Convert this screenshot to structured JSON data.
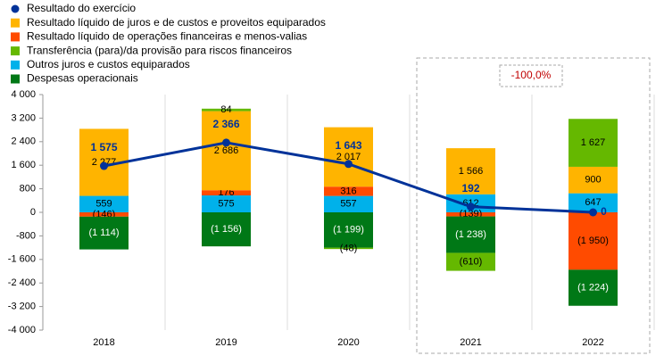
{
  "chart_data": {
    "type": "bar",
    "categories": [
      "2018",
      "2019",
      "2020",
      "2021",
      "2022"
    ],
    "series": [
      {
        "name": "Resultado do exercício",
        "type": "line",
        "color": "#003299",
        "values": [
          1575,
          2366,
          1643,
          192,
          0
        ],
        "value_labels": [
          "1 575",
          "2 366",
          "1 643",
          "192",
          "0"
        ]
      },
      {
        "name": "Resultado líquido de juros e de custos e proveitos equiparados",
        "color": "#ffb400",
        "values": [
          2277,
          2686,
          2017,
          1566,
          900
        ],
        "value_labels": [
          "2 277",
          "2 686",
          "2 017",
          "1 566",
          "900"
        ]
      },
      {
        "name": "Resultado líquido de operações financeiras e menos-valias",
        "color": "#ff4b00",
        "values": [
          -146,
          176,
          316,
          -139,
          -1950
        ],
        "value_labels": [
          "(146)",
          "176",
          "316",
          "(139)",
          "(1 950)"
        ]
      },
      {
        "name": "Transferência (para)/da provisão para riscos financeiros",
        "color": "#65b800",
        "values": [
          null,
          84,
          -48,
          -610,
          1627
        ],
        "value_labels": [
          null,
          "84",
          "(48)",
          "(610)",
          "1 627"
        ]
      },
      {
        "name": "Outros juros e custos equiparados",
        "color": "#00b1ea",
        "values": [
          559,
          575,
          557,
          612,
          647
        ],
        "value_labels": [
          "559",
          "575",
          "557",
          "612",
          "647"
        ]
      },
      {
        "name": "Despesas operacionais",
        "color": "#007816",
        "values": [
          -1114,
          -1156,
          -1199,
          -1238,
          -1224
        ],
        "value_labels": [
          "(1 114)",
          "(1 156)",
          "(1 199)",
          "(1 238)",
          "(1 224)"
        ]
      }
    ],
    "annotation": "-100,0%",
    "ylim": [
      -4000,
      4000
    ],
    "yticks": [
      {
        "value": -4000,
        "label": "-4 000"
      },
      {
        "value": -3200,
        "label": "-3 200"
      },
      {
        "value": -2400,
        "label": "-2 400"
      },
      {
        "value": -1600,
        "label": "-1 600"
      },
      -800,
      0,
      800,
      {
        "value": 1600,
        "label": "1 600"
      },
      {
        "value": 2400,
        "label": "2 400"
      },
      {
        "value": 3200,
        "label": "3 200"
      },
      {
        "value": 4000,
        "label": "4 000"
      }
    ]
  }
}
